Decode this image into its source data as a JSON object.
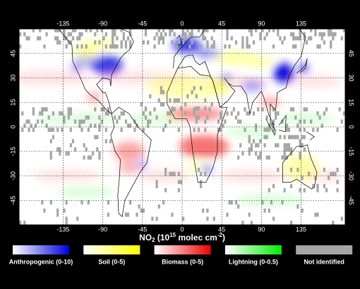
{
  "map": {
    "xlim": [
      -185,
      185
    ],
    "ylim": [
      -60,
      60
    ],
    "xticks": [
      -135,
      -90,
      -45,
      0,
      45,
      90,
      135
    ],
    "yticks": [
      45,
      30,
      15,
      0,
      -15,
      -30,
      -45
    ],
    "title": {
      "base": "NO",
      "sub": "2",
      "open": " (10",
      "sup": "15",
      "unit": " molec cm",
      "sup2": "-2",
      "close": ")"
    },
    "legend": [
      {
        "name": "Anthropogenic (0-10)",
        "color": "#0000dd"
      },
      {
        "name": "Soil (0-5)",
        "color": "#ffff00"
      },
      {
        "name": "Biomass (0-5)",
        "color": "#ee0000"
      },
      {
        "name": "Lightning (0-0.5)",
        "color": "#00ee00"
      },
      {
        "name": "Not identified",
        "color": "#a6a6a6"
      }
    ]
  }
}
